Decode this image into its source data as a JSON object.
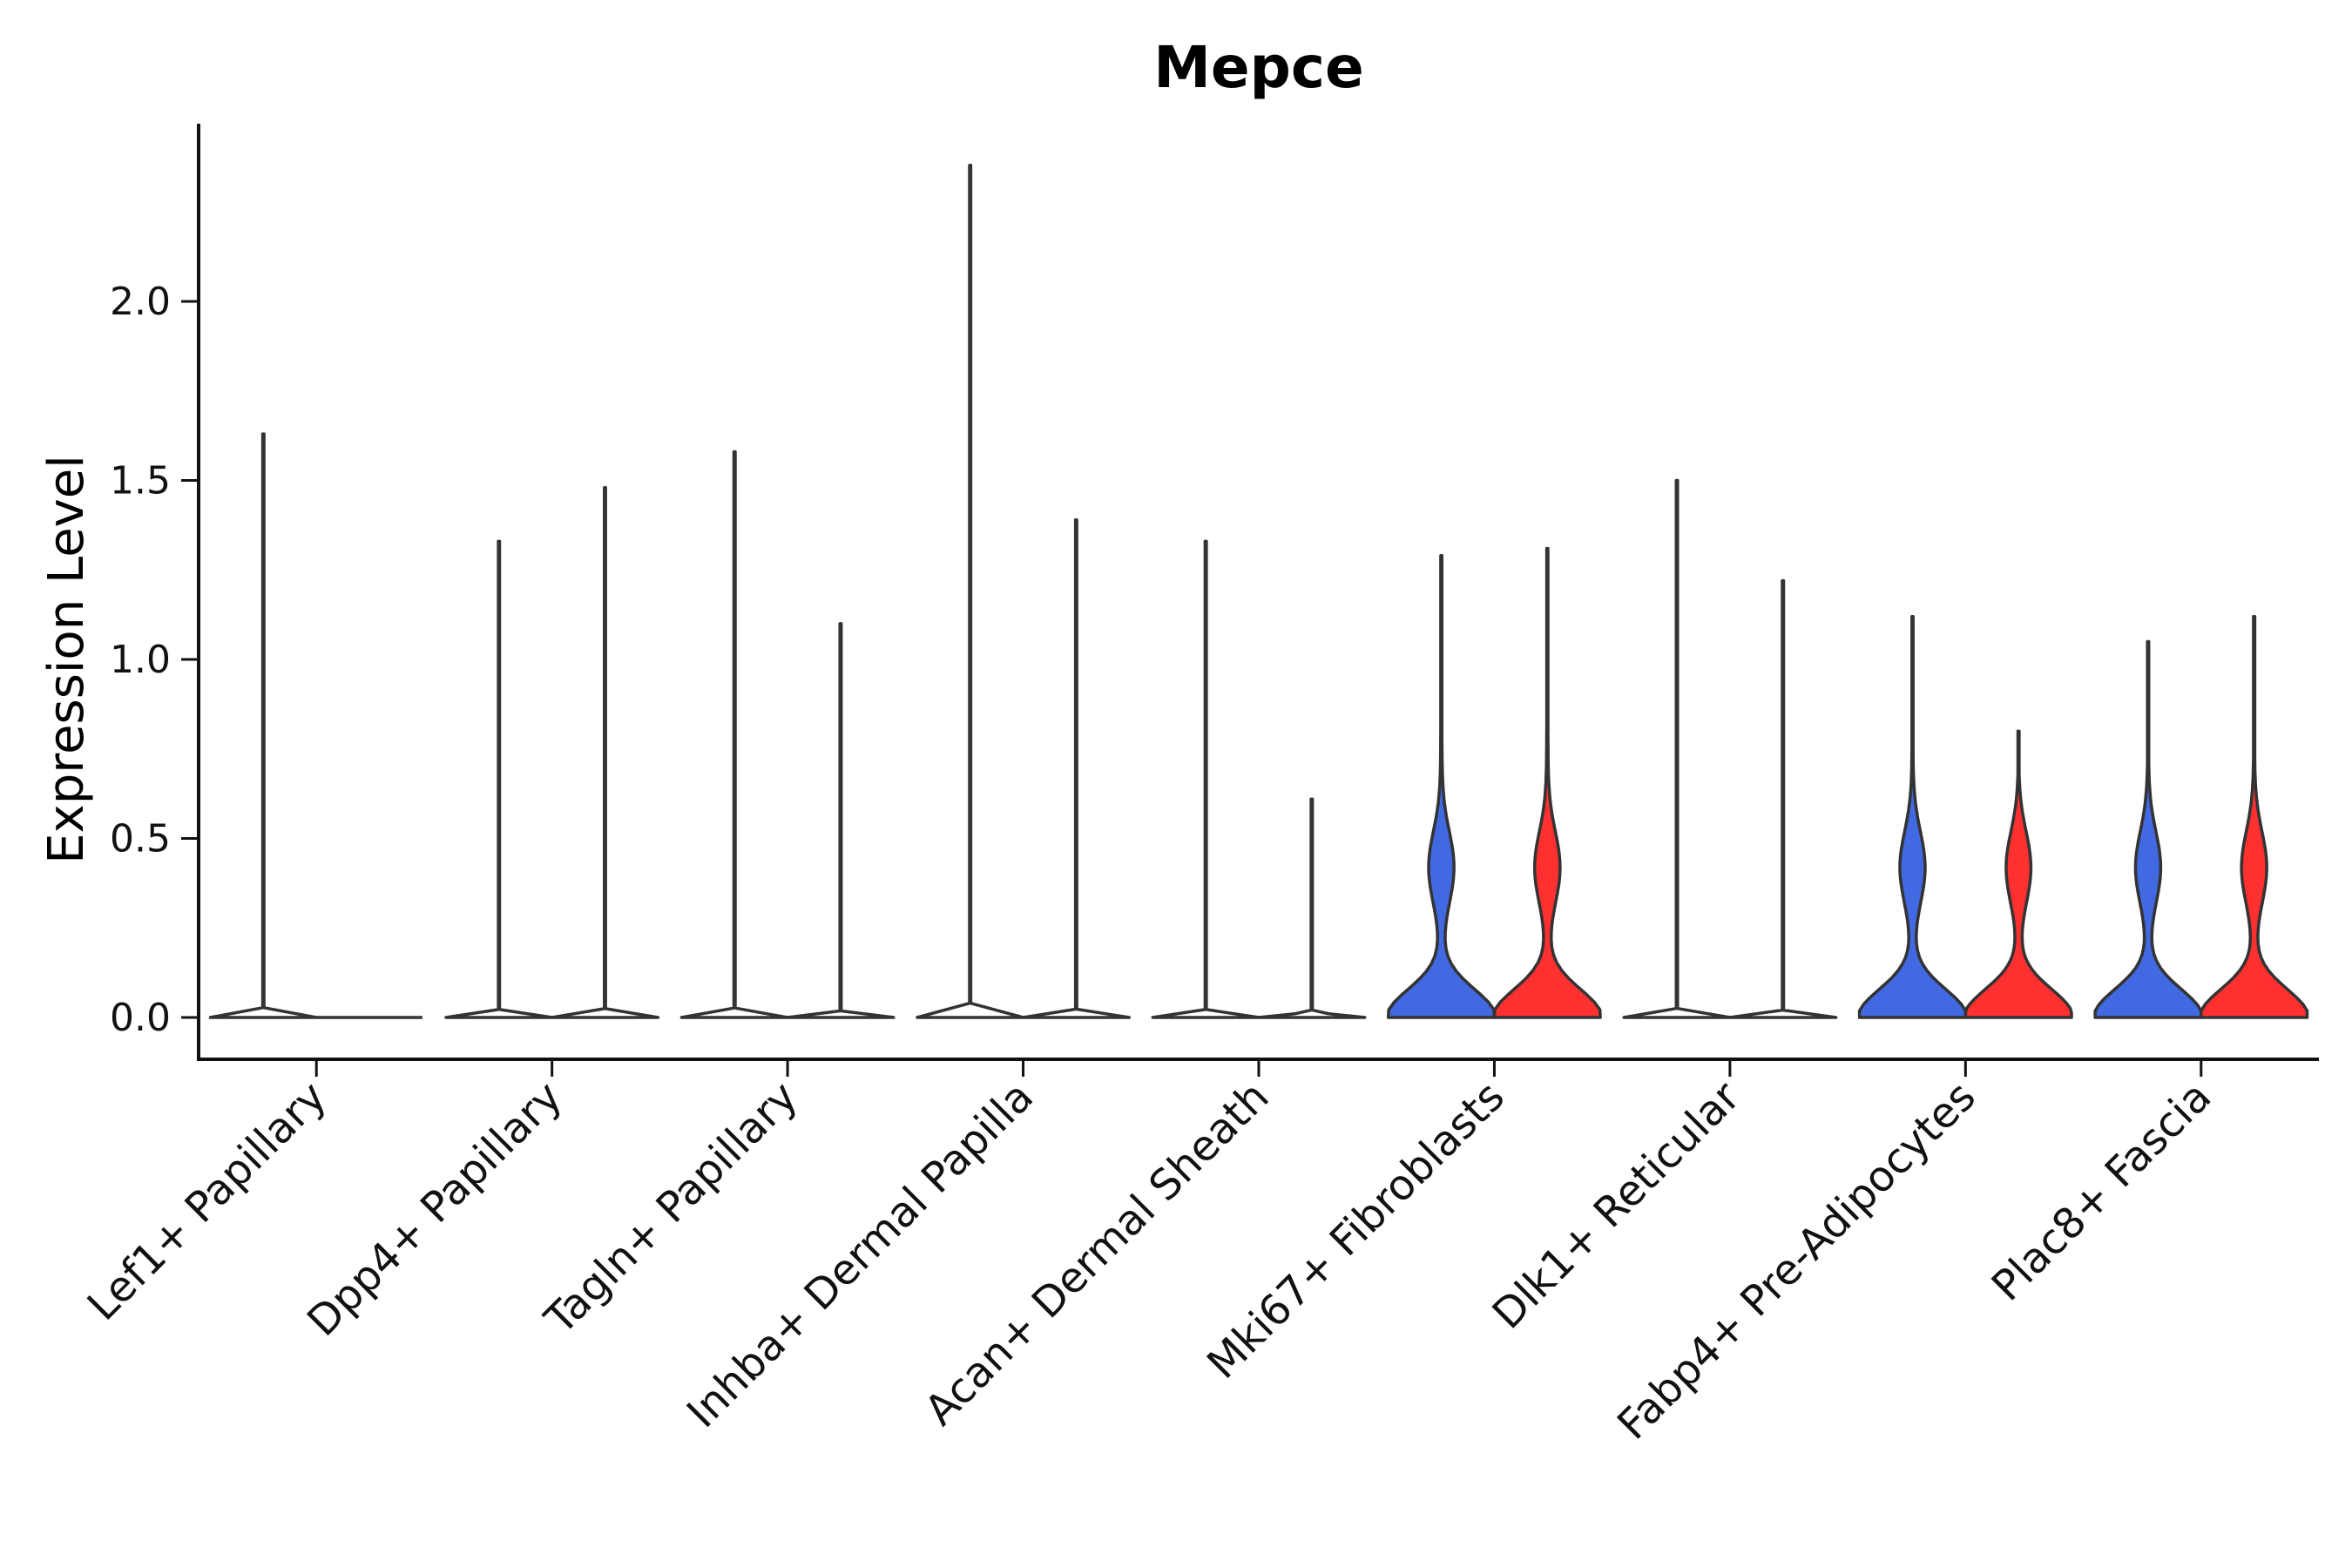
{
  "chart_data": {
    "type": "violin",
    "title": "Mepce",
    "xlabel": "",
    "ylabel": "Expression Level",
    "ylim": [
      -0.12,
      2.5
    ],
    "yticks": [
      0.0,
      0.5,
      1.0,
      1.5,
      2.0
    ],
    "ytick_labels": [
      "0.0",
      "0.5",
      "1.0",
      "1.5",
      "2.0"
    ],
    "categories": [
      "Lef1+ Papillary",
      "Dpp4+ Papillary",
      "Tagln+ Papillary",
      "Inhba+ Dermal Papilla",
      "Acan+ Dermal Sheath",
      "Mki67+ Fibroblasts",
      "Dlk1+ Reticular",
      "Fabp4+ Pre-Adipocytes",
      "Plac8+ Fascia"
    ],
    "series": [
      {
        "name": "group1",
        "color": "#4169E1",
        "max_values": [
          1.63,
          1.33,
          1.58,
          2.38,
          1.33,
          1.29,
          1.5,
          1.12,
          1.05
        ],
        "filled": [
          false,
          false,
          false,
          false,
          false,
          true,
          false,
          true,
          true
        ]
      },
      {
        "name": "group2",
        "color": "#FF3030",
        "max_values": [
          0.0,
          1.48,
          1.1,
          1.39,
          0.61,
          1.31,
          1.22,
          0.8,
          1.12
        ],
        "filled": [
          false,
          false,
          false,
          false,
          false,
          true,
          false,
          true,
          true
        ]
      }
    ]
  }
}
